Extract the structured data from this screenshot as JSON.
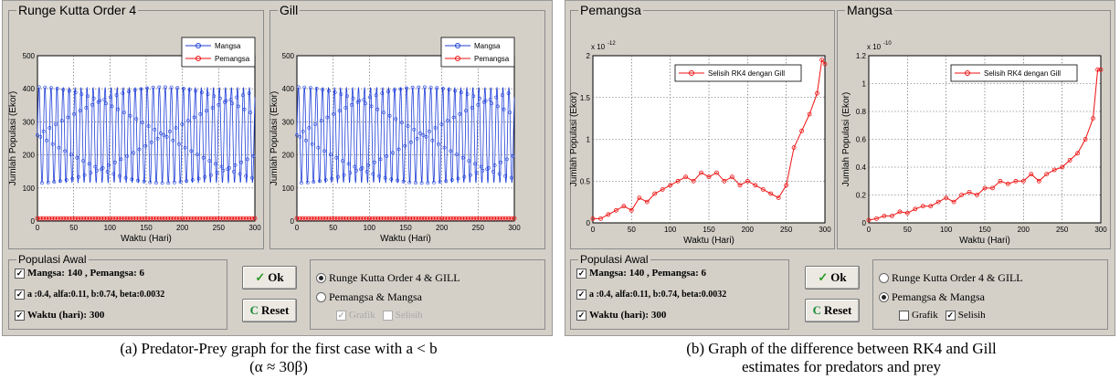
{
  "panel_a": {
    "group1_title": "Runge Kutta Order 4",
    "group2_title": "Gill",
    "ylabel": "Jumlah Populasi (Ekor)",
    "xlabel": "Waktu (Hari)",
    "legend": [
      "Mangsa",
      "Pemangsa"
    ],
    "controls": {
      "group_title": "Populasi Awal",
      "row1": "Mangsa: 140 , Pemangsa: 6",
      "row2": "a :0.4, alfa:0.11, b:0.74, beta:0.0032",
      "row3": "Waktu (hari): 300",
      "ok_label": "Ok",
      "reset_label": "Reset",
      "radio1": "Runge Kutta Order 4 & GILL",
      "radio2": "Pemangsa & Mangsa",
      "cb_grafik": "Grafik",
      "cb_selisih": "Selisih"
    }
  },
  "panel_b": {
    "group1_title": "Pemangsa",
    "group2_title": "Mangsa",
    "ylabel": "Jumlah Populasi (Ekor)",
    "xlabel": "Waktu (Hari)",
    "legend": [
      "Selisih RK4 dengan Gill"
    ],
    "exp1": "x 10",
    "exp1_pow": "-12",
    "exp2": "x 10",
    "exp2_pow": "-10",
    "controls": {
      "group_title": "Populasi Awal",
      "row1": "Mangsa: 140 , Pemangsa: 6",
      "row2": "a :0.4, alfa:0.11, b:0.74, beta:0.0032",
      "row3": "Waktu (hari): 300",
      "ok_label": "Ok",
      "reset_label": "Reset",
      "radio1": "Runge Kutta Order 4 & GILL",
      "radio2": "Pemangsa & Mangsa",
      "cb_grafik": "Grafik",
      "cb_selisih": "Selisih"
    }
  },
  "captions": {
    "a_line1": "(a) Predator-Prey graph for the first case with a < b",
    "a_line2": "(α ≈ 30β)",
    "b_line1": "(b) Graph of the difference between RK4 and Gill",
    "b_line2": "estimates for predators and prey"
  },
  "colors": {
    "mangsa": "#1f3fd8",
    "pemangsa": "#ee1111",
    "window": "#d4d0c8"
  },
  "chart_data": [
    {
      "type": "line",
      "title": "Runge Kutta Order 4",
      "xlabel": "Waktu (Hari)",
      "ylabel": "Jumlah Populasi (Ekor)",
      "xlim": [
        0,
        300
      ],
      "ylim": [
        0,
        500
      ],
      "xticks": [
        0,
        50,
        100,
        150,
        200,
        250,
        300
      ],
      "yticks": [
        0,
        100,
        200,
        300,
        400,
        500
      ],
      "grid": true,
      "legend": "top-right",
      "series": [
        {
          "name": "Mangsa",
          "oscillation_min": 115,
          "oscillation_max": 405,
          "period": 8.3
        },
        {
          "name": "Pemangsa",
          "value": 8
        }
      ]
    },
    {
      "type": "line",
      "title": "Gill",
      "xlabel": "Waktu (Hari)",
      "ylabel": "Jumlah Populasi (Ekor)",
      "xlim": [
        0,
        300
      ],
      "ylim": [
        0,
        500
      ],
      "xticks": [
        0,
        50,
        100,
        150,
        200,
        250,
        300
      ],
      "yticks": [
        0,
        100,
        200,
        300,
        400,
        500
      ],
      "grid": true,
      "legend": "top-right",
      "series": [
        {
          "name": "Mangsa",
          "oscillation_min": 115,
          "oscillation_max": 405,
          "period": 8.3
        },
        {
          "name": "Pemangsa",
          "value": 8
        }
      ]
    },
    {
      "type": "line",
      "title": "Pemangsa",
      "xlabel": "Waktu (Hari)",
      "ylabel": "Jumlah Populasi (Ekor)",
      "y_scale_factor": "x 10^-12",
      "xlim": [
        0,
        300
      ],
      "ylim": [
        0,
        2
      ],
      "xticks": [
        0,
        50,
        100,
        150,
        200,
        250,
        300
      ],
      "yticks": [
        0,
        0.5,
        1,
        1.5,
        2
      ],
      "grid": true,
      "legend": "top-right",
      "series": [
        {
          "name": "Selisih RK4 dengan Gill",
          "x": [
            0,
            10,
            20,
            30,
            40,
            50,
            60,
            70,
            80,
            90,
            100,
            110,
            120,
            130,
            140,
            150,
            160,
            170,
            180,
            190,
            200,
            210,
            220,
            230,
            240,
            250,
            260,
            270,
            280,
            290,
            296,
            300
          ],
          "y": [
            0.05,
            0.05,
            0.1,
            0.15,
            0.2,
            0.15,
            0.3,
            0.25,
            0.35,
            0.4,
            0.45,
            0.5,
            0.55,
            0.5,
            0.6,
            0.55,
            0.6,
            0.5,
            0.55,
            0.45,
            0.5,
            0.45,
            0.4,
            0.35,
            0.3,
            0.45,
            0.9,
            1.1,
            1.3,
            1.55,
            1.95,
            1.9
          ]
        }
      ]
    },
    {
      "type": "line",
      "title": "Mangsa",
      "xlabel": "Waktu (Hari)",
      "ylabel": "Jumlah Populasi (Ekor)",
      "y_scale_factor": "x 10^-10",
      "xlim": [
        0,
        300
      ],
      "ylim": [
        0,
        1.2
      ],
      "xticks": [
        0,
        50,
        100,
        150,
        200,
        250,
        300
      ],
      "yticks": [
        0,
        0.2,
        0.4,
        0.6,
        0.8,
        1,
        1.2
      ],
      "grid": true,
      "legend": "top-right",
      "series": [
        {
          "name": "Selisih RK4 dengan Gill",
          "x": [
            0,
            10,
            20,
            30,
            40,
            50,
            60,
            70,
            80,
            90,
            100,
            110,
            120,
            130,
            140,
            150,
            160,
            170,
            180,
            190,
            200,
            210,
            220,
            230,
            240,
            250,
            260,
            270,
            280,
            290,
            296,
            300
          ],
          "y": [
            0.02,
            0.03,
            0.05,
            0.05,
            0.08,
            0.07,
            0.1,
            0.12,
            0.12,
            0.15,
            0.18,
            0.15,
            0.2,
            0.22,
            0.2,
            0.25,
            0.25,
            0.3,
            0.28,
            0.3,
            0.3,
            0.35,
            0.3,
            0.35,
            0.38,
            0.4,
            0.45,
            0.5,
            0.6,
            0.75,
            1.1,
            1.1
          ]
        }
      ]
    }
  ]
}
